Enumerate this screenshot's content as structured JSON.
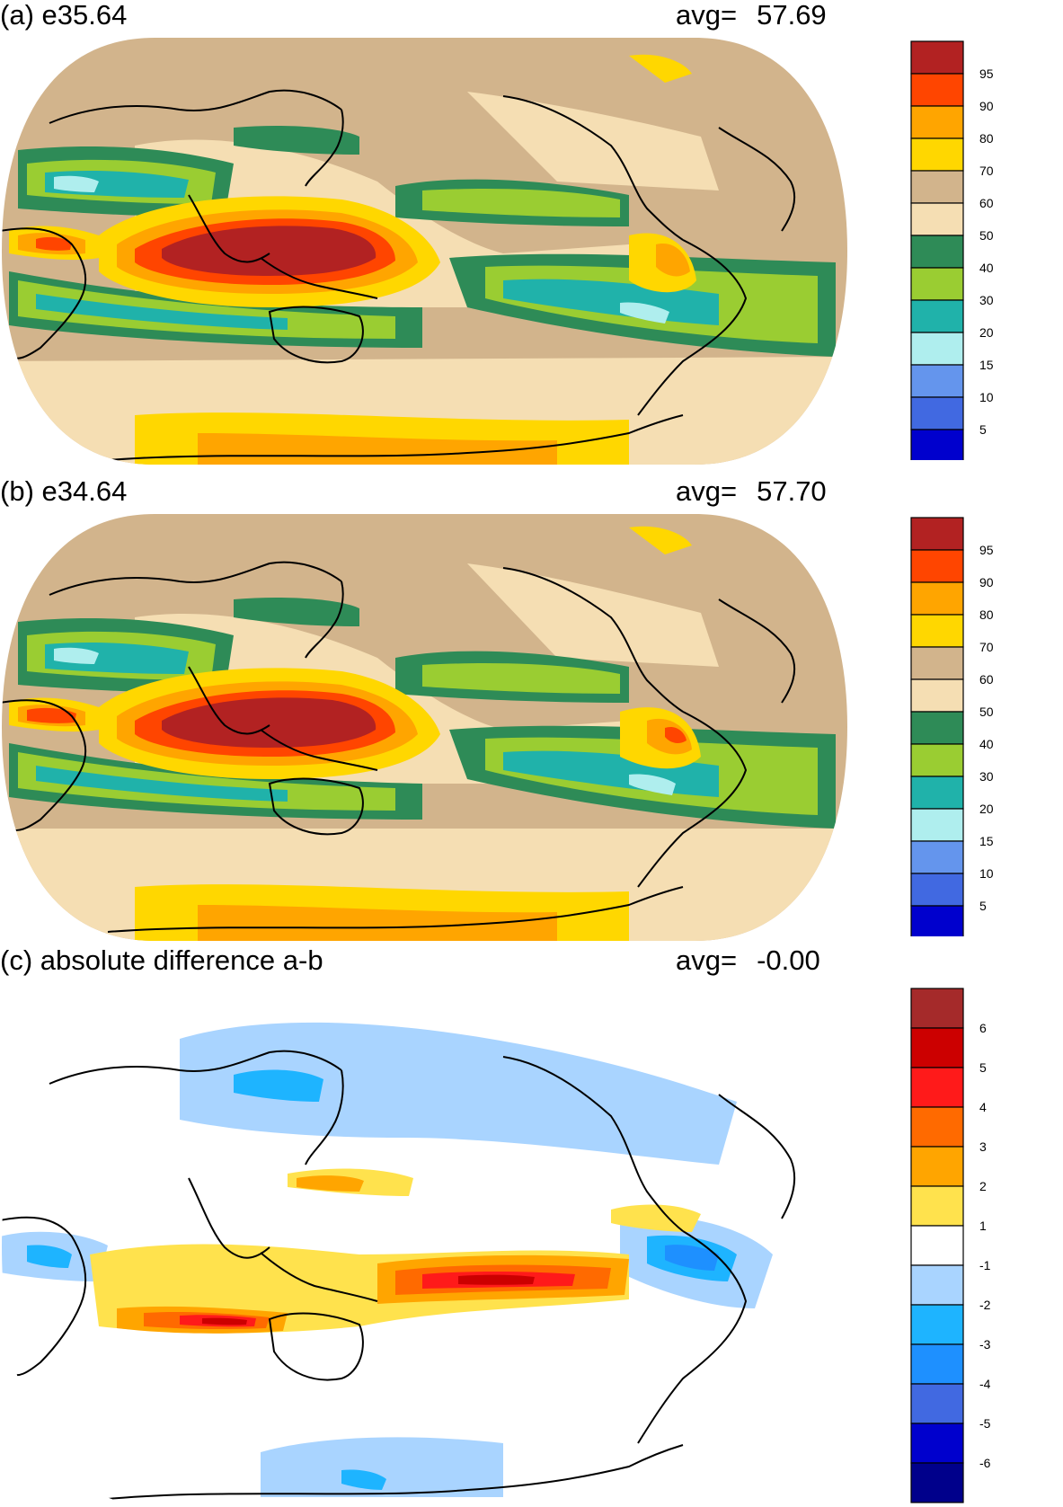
{
  "panels": [
    {
      "title": "(a) e35.64",
      "avg_label": "avg=",
      "avg_value": "57.69",
      "colorbar": {
        "labels": [
          "95",
          "90",
          "80",
          "70",
          "60",
          "50",
          "40",
          "30",
          "20",
          "15",
          "10",
          "5"
        ],
        "colors": [
          "#b22222",
          "#ff4500",
          "#ffa500",
          "#ffd700",
          "#d2b48c",
          "#f5deb3",
          "#2e8b57",
          "#9acd32",
          "#20b2aa",
          "#afeeee",
          "#6495ed",
          "#4169e1",
          "#0000cd"
        ]
      }
    },
    {
      "title": "(b) e34.64",
      "avg_label": "avg=",
      "avg_value": "57.70",
      "colorbar": {
        "labels": [
          "95",
          "90",
          "80",
          "70",
          "60",
          "50",
          "40",
          "30",
          "20",
          "15",
          "10",
          "5"
        ],
        "colors": [
          "#b22222",
          "#ff4500",
          "#ffa500",
          "#ffd700",
          "#d2b48c",
          "#f5deb3",
          "#2e8b57",
          "#9acd32",
          "#20b2aa",
          "#afeeee",
          "#6495ed",
          "#4169e1",
          "#0000cd"
        ]
      }
    },
    {
      "title": "(c) absolute difference a-b",
      "avg_label": "avg=",
      "avg_value": "-0.00",
      "colorbar": {
        "labels": [
          "6",
          "5",
          "4",
          "3",
          "2",
          "1",
          "-1",
          "-2",
          "-3",
          "-4",
          "-5",
          "-6"
        ],
        "colors": [
          "#a52a2a",
          "#cc0000",
          "#ff1a1a",
          "#ff6a00",
          "#ffa500",
          "#ffe24d",
          "#ffffff",
          "#a9d4ff",
          "#1eb4ff",
          "#1e90ff",
          "#4169e1",
          "#0000cd",
          "#00008b"
        ]
      }
    }
  ]
}
